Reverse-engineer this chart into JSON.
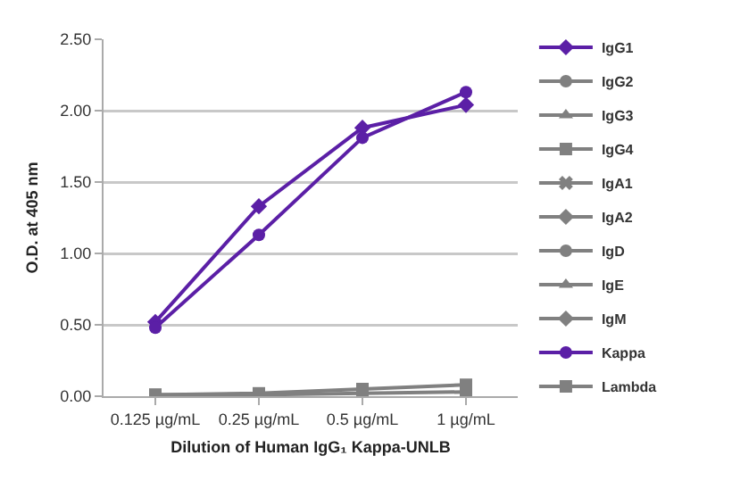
{
  "chart_data": {
    "type": "line",
    "xlabel": "Dilution of Human IgG₁ Kappa-UNLB",
    "ylabel": "O.D. at 405 nm",
    "categories": [
      "0.125 µg/mL",
      "0.25 µg/mL",
      "0.5 µg/mL",
      "1 µg/mL"
    ],
    "ylim": [
      0,
      2.5
    ],
    "yticks": [
      {
        "value": 0,
        "label": "0.00"
      },
      {
        "value": 0.5,
        "label": "0.50"
      },
      {
        "value": 1,
        "label": "1.00"
      },
      {
        "value": 1.5,
        "label": "1.50"
      },
      {
        "value": 2,
        "label": "2.00"
      },
      {
        "value": 2.5,
        "label": "2.50"
      }
    ],
    "grid": "y",
    "legend": "right",
    "line_style": "solid",
    "series": [
      {
        "name": "IgG1",
        "color": "#5b1fa6",
        "marker": "diamond",
        "values": [
          0.52,
          1.33,
          1.88,
          2.04
        ]
      },
      {
        "name": "IgG2",
        "color": "#808080",
        "marker": "circle",
        "values": [
          null,
          null,
          null,
          null
        ]
      },
      {
        "name": "IgG3",
        "color": "#808080",
        "marker": "triangle",
        "values": [
          null,
          null,
          null,
          null
        ]
      },
      {
        "name": "IgG4",
        "color": "#808080",
        "marker": "square",
        "values": [
          0.01,
          0.02,
          0.05,
          0.08
        ]
      },
      {
        "name": "IgA1",
        "color": "#808080",
        "marker": "cross",
        "values": [
          null,
          null,
          null,
          null
        ]
      },
      {
        "name": "IgA2",
        "color": "#808080",
        "marker": "diamond",
        "values": [
          null,
          null,
          null,
          null
        ]
      },
      {
        "name": "IgD",
        "color": "#808080",
        "marker": "circle",
        "values": [
          null,
          null,
          null,
          null
        ]
      },
      {
        "name": "IgE",
        "color": "#808080",
        "marker": "triangle",
        "values": [
          null,
          null,
          null,
          null
        ]
      },
      {
        "name": "IgM",
        "color": "#808080",
        "marker": "diamond",
        "values": [
          null,
          null,
          null,
          null
        ]
      },
      {
        "name": "Kappa",
        "color": "#5b1fa6",
        "marker": "circle",
        "values": [
          0.48,
          1.13,
          1.81,
          2.13
        ]
      },
      {
        "name": "Lambda",
        "color": "#808080",
        "marker": "square",
        "values": [
          0.01,
          0.01,
          0.02,
          0.03
        ]
      }
    ]
  }
}
